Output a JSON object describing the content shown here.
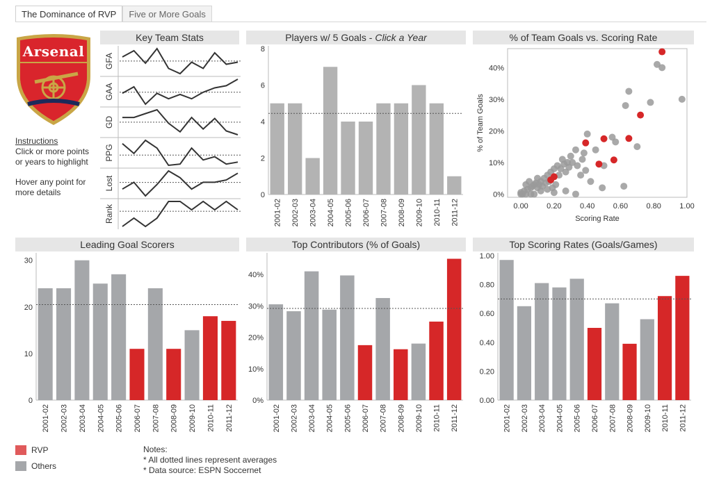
{
  "tabs": [
    {
      "label": "The Dominance of RVP",
      "active": true
    },
    {
      "label": "Five or More Goals",
      "active": false
    }
  ],
  "logo": {
    "text": "Arsenal",
    "colors": {
      "red": "#d9252c",
      "gold": "#c9a646",
      "navy": "#1c2a5a"
    }
  },
  "instructions": {
    "heading": "Instructions",
    "line1": "Click or more points",
    "line2": "or years to highlight",
    "line3": "Hover any point for",
    "line4": "more details"
  },
  "colors": {
    "rvp": "#d62728",
    "others": "#a5a7aa",
    "mid": "#b3b3b3",
    "avg_line": "#555555"
  },
  "legend": {
    "rvp_label": "RVP",
    "others_label": "Others"
  },
  "notes": {
    "heading": "Notes:",
    "line1": "* All dotted lines represent averages",
    "line2": "* Data source: ESPN Soccernet"
  },
  "chart_data": [
    {
      "id": "key_team_stats",
      "type": "line",
      "title": "Key Team Stats",
      "categories": [
        "2001-02",
        "2002-03",
        "2003-04",
        "2004-05",
        "2005-06",
        "2006-07",
        "2007-08",
        "2008-09",
        "2009-10",
        "2010-11",
        "2011-12"
      ],
      "series": [
        {
          "name": "GFA",
          "values": [
            79,
            85,
            73,
            87,
            68,
            63,
            74,
            68,
            83,
            72,
            74
          ]
        },
        {
          "name": "GAA",
          "values": [
            36,
            42,
            26,
            36,
            31,
            35,
            31,
            37,
            41,
            43,
            49
          ]
        },
        {
          "name": "GD",
          "values": [
            43,
            43,
            47,
            51,
            37,
            28,
            43,
            31,
            42,
            29,
            25
          ]
        },
        {
          "name": "PPG",
          "values": [
            2.29,
            2.05,
            2.37,
            2.18,
            1.76,
            1.79,
            2.18,
            1.89,
            1.97,
            1.79,
            1.84
          ]
        },
        {
          "name": "Lost",
          "values": [
            3,
            6,
            0,
            5,
            11,
            8,
            3,
            6,
            6,
            7,
            10
          ]
        },
        {
          "name": "Rank",
          "values": [
            1,
            2,
            1,
            2,
            4,
            4,
            3,
            4,
            3,
            4,
            3
          ]
        }
      ]
    },
    {
      "id": "five_goals",
      "type": "bar",
      "title": "Players w/ 5 Goals - ",
      "title_italic": "Click a Year",
      "categories": [
        "2001-02",
        "2002-03",
        "2003-04",
        "2004-05",
        "2005-06",
        "2006-07",
        "2007-08",
        "2008-09",
        "2009-10",
        "2010-11",
        "2011-12"
      ],
      "values": [
        5,
        5,
        2,
        7,
        4,
        4,
        5,
        5,
        6,
        5,
        1
      ],
      "average": 4.45,
      "ylim": [
        0,
        8
      ],
      "yticks": [
        0,
        2,
        4,
        6,
        8
      ]
    },
    {
      "id": "pct_vs_rate",
      "type": "scatter",
      "title": "% of Team Goals vs. Scoring Rate",
      "xlabel": "Scoring Rate",
      "ylabel": "% of Team Goals",
      "xlim": [
        -0.08,
        1.0
      ],
      "ylim": [
        -0.01,
        0.46
      ],
      "xticks": [
        {
          "v": 0,
          "label": "0.00"
        },
        {
          "v": 0.2,
          "label": "0.20"
        },
        {
          "v": 0.4,
          "label": "0.40"
        },
        {
          "v": 0.6,
          "label": "0.60"
        },
        {
          "v": 0.8,
          "label": "0.80"
        },
        {
          "v": 1.0,
          "label": "1.00"
        }
      ],
      "yticks": [
        {
          "v": 0,
          "label": "0%"
        },
        {
          "v": 0.1,
          "label": "10%"
        },
        {
          "v": 0.2,
          "label": "20%"
        },
        {
          "v": 0.3,
          "label": "30%"
        },
        {
          "v": 0.4,
          "label": "40%"
        }
      ],
      "rvp_points": [
        [
          0.85,
          0.45
        ],
        [
          0.72,
          0.25
        ],
        [
          0.5,
          0.175
        ],
        [
          0.39,
          0.162
        ],
        [
          0.65,
          0.176
        ],
        [
          0.56,
          0.108
        ],
        [
          0.47,
          0.095
        ],
        [
          0.2,
          0.055
        ],
        [
          0.18,
          0.045
        ]
      ],
      "other_points": [
        [
          0.82,
          0.41
        ],
        [
          0.85,
          0.4
        ],
        [
          0.97,
          0.3
        ],
        [
          0.65,
          0.325
        ],
        [
          0.78,
          0.29
        ],
        [
          0.63,
          0.28
        ],
        [
          0.7,
          0.15
        ],
        [
          0.4,
          0.19
        ],
        [
          0.55,
          0.18
        ],
        [
          0.57,
          0.165
        ],
        [
          0.45,
          0.14
        ],
        [
          0.5,
          0.09
        ],
        [
          0.38,
          0.13
        ],
        [
          0.37,
          0.11
        ],
        [
          0.33,
          0.14
        ],
        [
          0.3,
          0.12
        ],
        [
          0.28,
          0.1
        ],
        [
          0.25,
          0.11
        ],
        [
          0.22,
          0.09
        ],
        [
          0.2,
          0.08
        ],
        [
          0.18,
          0.07
        ],
        [
          0.16,
          0.06
        ],
        [
          0.14,
          0.05
        ],
        [
          0.12,
          0.04
        ],
        [
          0.1,
          0.05
        ],
        [
          0.08,
          0.03
        ],
        [
          0.06,
          0.02
        ],
        [
          0.04,
          0.015
        ],
        [
          0.02,
          0.01
        ],
        [
          0.0,
          0.0
        ],
        [
          0.0,
          0.005
        ],
        [
          0.01,
          0.0
        ],
        [
          0.03,
          0.03
        ],
        [
          0.05,
          0.04
        ],
        [
          0.07,
          0.025
        ],
        [
          0.09,
          0.035
        ],
        [
          0.11,
          0.03
        ],
        [
          0.13,
          0.025
        ],
        [
          0.15,
          0.035
        ],
        [
          0.17,
          0.04
        ],
        [
          0.19,
          0.02
        ],
        [
          0.21,
          0.03
        ],
        [
          0.23,
          0.06
        ],
        [
          0.24,
          0.08
        ],
        [
          0.26,
          0.095
        ],
        [
          0.27,
          0.07
        ],
        [
          0.29,
          0.085
        ],
        [
          0.31,
          0.1
        ],
        [
          0.34,
          0.09
        ],
        [
          0.36,
          0.06
        ],
        [
          0.39,
          0.075
        ],
        [
          0.42,
          0.04
        ],
        [
          0.49,
          0.02
        ],
        [
          0.62,
          0.025
        ],
        [
          0.33,
          0.0
        ],
        [
          0.27,
          0.01
        ],
        [
          0.08,
          0.0
        ],
        [
          0.12,
          0.01
        ],
        [
          0.16,
          0.015
        ],
        [
          0.2,
          0.005
        ],
        [
          0.03,
          0.0
        ],
        [
          0.06,
          0.0
        ],
        [
          0.1,
          0.02
        ]
      ]
    },
    {
      "id": "leading_scorers",
      "type": "bar",
      "title": "Leading Goal Scorers",
      "categories": [
        "2001-02",
        "2002-03",
        "2003-04",
        "2004-05",
        "2005-06",
        "2006-07",
        "2007-08",
        "2008-09",
        "2009-10",
        "2010-11",
        "2011-12"
      ],
      "values": [
        24,
        24,
        30,
        25,
        27,
        11,
        24,
        11,
        15,
        18,
        17
      ],
      "rvp": [
        false,
        false,
        false,
        false,
        false,
        true,
        false,
        true,
        false,
        true,
        true
      ],
      "average": 20.5,
      "ylim": [
        0,
        31
      ],
      "yticks": [
        {
          "v": 0,
          "label": "0"
        },
        {
          "v": 10,
          "label": "10"
        },
        {
          "v": 20,
          "label": "20"
        },
        {
          "v": 30,
          "label": "30"
        }
      ]
    },
    {
      "id": "top_contributors",
      "type": "bar",
      "title": "Top Contributors (% of Goals)",
      "categories": [
        "2001-02",
        "2002-03",
        "2003-04",
        "2004-05",
        "2005-06",
        "2006-07",
        "2007-08",
        "2008-09",
        "2009-10",
        "2010-11",
        "2011-12"
      ],
      "values": [
        0.305,
        0.283,
        0.41,
        0.288,
        0.397,
        0.175,
        0.325,
        0.162,
        0.18,
        0.25,
        0.45
      ],
      "rvp": [
        false,
        false,
        false,
        false,
        false,
        true,
        false,
        true,
        false,
        true,
        true
      ],
      "average": 0.292,
      "ylim": [
        0,
        0.46
      ],
      "yticks": [
        {
          "v": 0,
          "label": "0%"
        },
        {
          "v": 0.1,
          "label": "10%"
        },
        {
          "v": 0.2,
          "label": "20%"
        },
        {
          "v": 0.3,
          "label": "30%"
        },
        {
          "v": 0.4,
          "label": "40%"
        }
      ]
    },
    {
      "id": "top_scoring_rates",
      "type": "bar",
      "title": "Top Scoring Rates (Goals/Games)",
      "categories": [
        "2001-02",
        "2002-03",
        "2003-04",
        "2004-05",
        "2005-06",
        "2006-07",
        "2007-08",
        "2008-09",
        "2009-10",
        "2010-11",
        "2011-12"
      ],
      "values": [
        0.97,
        0.65,
        0.81,
        0.78,
        0.84,
        0.5,
        0.67,
        0.39,
        0.56,
        0.72,
        0.86
      ],
      "rvp": [
        false,
        false,
        false,
        false,
        false,
        true,
        false,
        true,
        false,
        true,
        true
      ],
      "average": 0.7,
      "ylim": [
        0,
        1.0
      ],
      "yticks": [
        {
          "v": 0,
          "label": "0.00"
        },
        {
          "v": 0.2,
          "label": "0.20"
        },
        {
          "v": 0.4,
          "label": "0.40"
        },
        {
          "v": 0.6,
          "label": "0.60"
        },
        {
          "v": 0.8,
          "label": "0.80"
        },
        {
          "v": 1.0,
          "label": "1.00"
        }
      ]
    }
  ]
}
